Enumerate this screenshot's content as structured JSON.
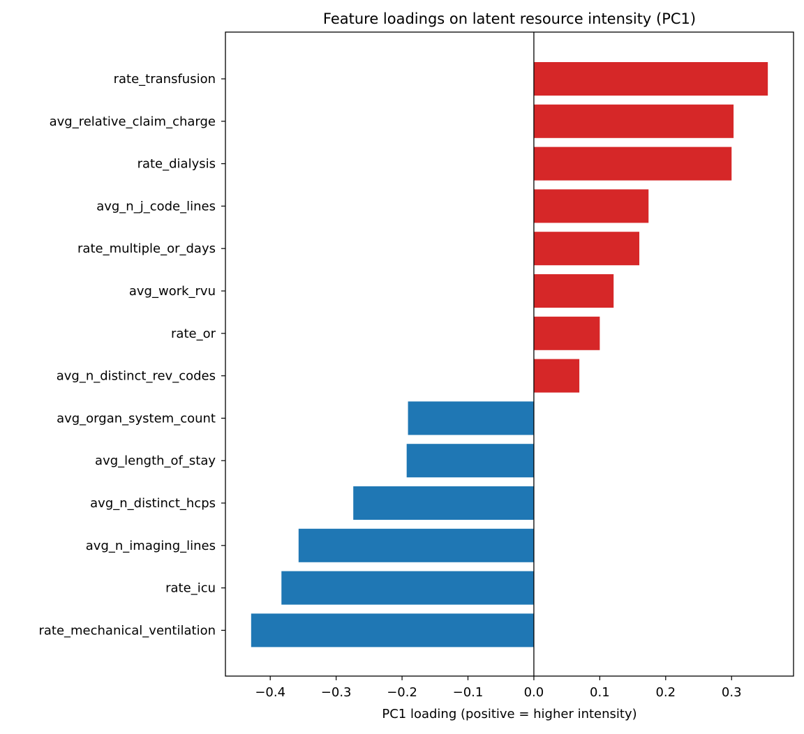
{
  "chart_data": {
    "type": "bar",
    "orientation": "horizontal",
    "title": "Feature loadings on latent resource intensity (PC1)",
    "xlabel": "PC1 loading (positive = higher intensity)",
    "ylabel": "",
    "xlim": [
      -0.468,
      0.394
    ],
    "xticks": [
      -0.4,
      -0.3,
      -0.2,
      -0.1,
      0.0,
      0.1,
      0.2,
      0.3
    ],
    "xtick_labels": [
      "−0.4",
      "−0.3",
      "−0.2",
      "−0.1",
      "0.0",
      "0.1",
      "0.2",
      "0.3"
    ],
    "grid": false,
    "zero_line": true,
    "colors": {
      "positive": "#d62728",
      "negative": "#1f77b4"
    },
    "categories": [
      "rate_transfusion",
      "avg_relative_claim_charge",
      "rate_dialysis",
      "avg_n_j_code_lines",
      "rate_multiple_or_days",
      "avg_work_rvu",
      "rate_or",
      "avg_n_distinct_rev_codes",
      "avg_organ_system_count",
      "avg_length_of_stay",
      "avg_n_distinct_hcps",
      "avg_n_imaging_lines",
      "rate_icu",
      "rate_mechanical_ventilation"
    ],
    "values": [
      0.355,
      0.303,
      0.3,
      0.174,
      0.16,
      0.121,
      0.1,
      0.069,
      -0.191,
      -0.193,
      -0.274,
      -0.357,
      -0.383,
      -0.429
    ]
  }
}
